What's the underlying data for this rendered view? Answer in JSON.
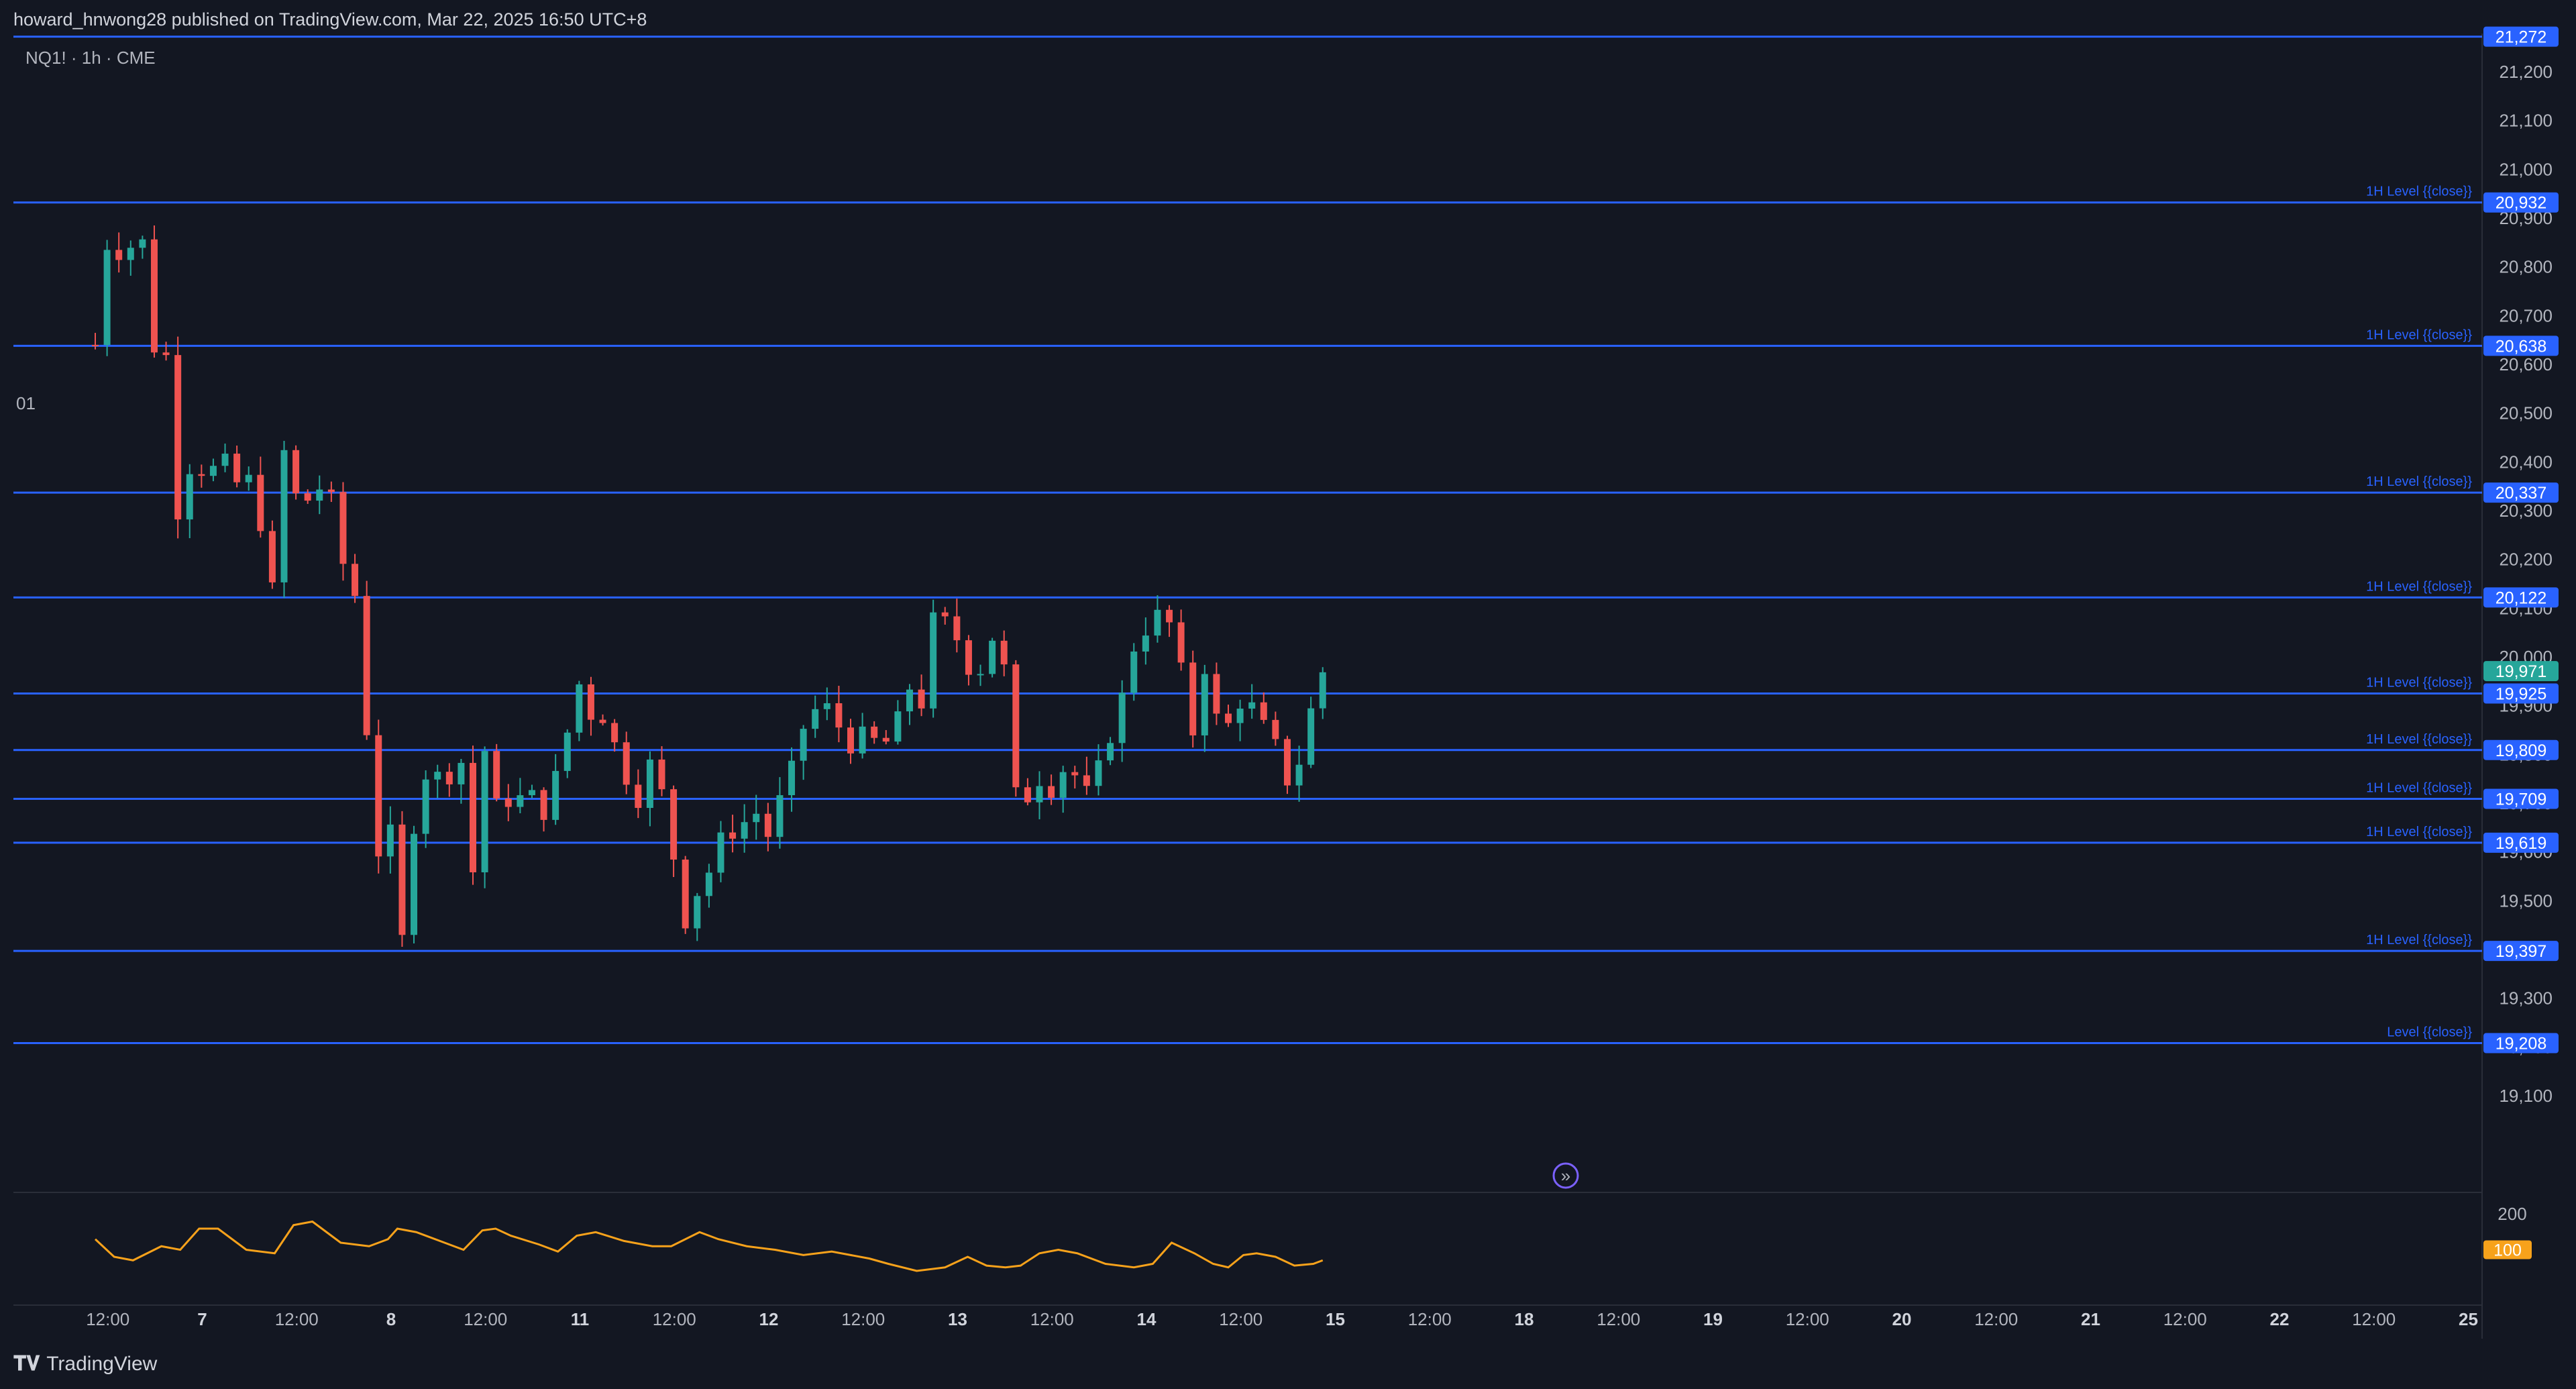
{
  "header": {
    "published": "howard_hnwong28 published on TradingView.com, Mar 22, 2025 16:50 UTC+8"
  },
  "footer": {
    "brand": "TradingView",
    "logo": "tv-logo-icon"
  },
  "colors": {
    "background": "#131722",
    "up": "#26a69a",
    "down": "#ef5350",
    "level": "#2962ff",
    "oscillator": "#f7a21b",
    "last_price": "#26a69a",
    "grid_text": "#b2b5be"
  },
  "chart_data": {
    "type": "candlestick",
    "symbol": "NQ1! · 1h · CME",
    "price_axis": {
      "min": 19000,
      "max": 21300,
      "ticks": [
        "21,200",
        "21,100",
        "21,000",
        "20,900",
        "20,800",
        "20,700",
        "20,600",
        "20,500",
        "20,400",
        "20,300",
        "20,200",
        "20,100",
        "20,000",
        "19,900",
        "19,800",
        "19,700",
        "19,600",
        "19,500",
        "19,400",
        "19,300",
        "19,200",
        "19,100"
      ],
      "tick_values": [
        21200,
        21100,
        21000,
        20900,
        20800,
        20700,
        20600,
        20500,
        20400,
        20300,
        20200,
        20100,
        20000,
        19900,
        19800,
        19700,
        19600,
        19500,
        19400,
        19300,
        19200,
        19100
      ]
    },
    "time_axis": {
      "labels": [
        "12:00",
        "7",
        "12:00",
        "8",
        "12:00",
        "11",
        "12:00",
        "12",
        "12:00",
        "13",
        "12:00",
        "14",
        "12:00",
        "15",
        "12:00",
        "18",
        "12:00",
        "19",
        "12:00",
        "20",
        "12:00",
        "21",
        "12:00",
        "22",
        "12:00",
        "25"
      ],
      "bold": [
        false,
        true,
        false,
        true,
        false,
        true,
        false,
        true,
        false,
        true,
        false,
        true,
        false,
        true,
        false,
        true,
        false,
        true,
        false,
        true,
        false,
        true,
        false,
        true,
        false,
        true
      ],
      "positions": [
        0.5,
        1,
        1.5,
        2,
        2.5,
        3,
        3.5,
        4,
        4.5,
        5,
        5.5,
        6,
        6.5,
        7,
        7.5,
        8,
        8.5,
        9,
        9.5,
        10,
        10.5,
        11,
        11.5,
        12,
        12.5,
        13
      ]
    },
    "levels": [
      {
        "value": 21272,
        "label": "21,272",
        "text": ""
      },
      {
        "value": 20932,
        "label": "20,932",
        "text": "1H Level {{close}}"
      },
      {
        "value": 20638,
        "label": "20,638",
        "text": "1H Level {{close}}"
      },
      {
        "value": 20337,
        "label": "20,337",
        "text": "1H Level {{close}}"
      },
      {
        "value": 20122,
        "label": "20,122",
        "text": "1H Level {{close}}"
      },
      {
        "value": 19925,
        "label": "19,925",
        "text": "1H Level {{close}}"
      },
      {
        "value": 19809,
        "label": "19,809",
        "text": "1H Level {{close}}"
      },
      {
        "value": 19709,
        "label": "19,709",
        "text": "1H Level {{close}}"
      },
      {
        "value": 19619,
        "label": "19,619",
        "text": "1H Level {{close}}"
      },
      {
        "value": 19397,
        "label": "19,397",
        "text": "1H Level {{close}}"
      },
      {
        "value": 19208,
        "label": "19,208",
        "text": "Level {{close}}"
      }
    ],
    "last_price": {
      "value": 19971,
      "label": "19,971"
    },
    "left_label": "01",
    "close_path": [
      [
        0,
        20640
      ],
      [
        0.04,
        20800
      ],
      [
        0.08,
        20880
      ],
      [
        0.12,
        20830
      ],
      [
        0.2,
        20845
      ],
      [
        0.25,
        20850
      ],
      [
        0.28,
        20700
      ],
      [
        0.33,
        20600
      ],
      [
        0.37,
        20650
      ],
      [
        0.4,
        20450
      ],
      [
        0.45,
        20250
      ],
      [
        0.5,
        20390
      ],
      [
        0.6,
        20380
      ],
      [
        0.7,
        20400
      ],
      [
        0.78,
        20330
      ],
      [
        0.85,
        20400
      ],
      [
        0.88,
        20250
      ],
      [
        0.93,
        20100
      ],
      [
        0.97,
        20300
      ],
      [
        1.0,
        20420
      ],
      [
        1.03,
        20440
      ],
      [
        1.08,
        20270
      ],
      [
        1.12,
        20320
      ],
      [
        1.18,
        20350
      ],
      [
        1.25,
        20320
      ],
      [
        1.3,
        20200
      ],
      [
        1.37,
        20150
      ],
      [
        1.42,
        19920
      ],
      [
        1.45,
        19800
      ],
      [
        1.5,
        19600
      ],
      [
        1.55,
        19700
      ],
      [
        1.58,
        19550
      ],
      [
        1.62,
        19400
      ],
      [
        1.66,
        19560
      ],
      [
        1.7,
        19700
      ],
      [
        1.75,
        19760
      ],
      [
        1.8,
        19780
      ],
      [
        1.84,
        19700
      ],
      [
        1.9,
        19800
      ],
      [
        1.95,
        19780
      ],
      [
        2.0,
        19560
      ],
      [
        2.05,
        19800
      ],
      [
        2.08,
        19820
      ],
      [
        2.12,
        19690
      ],
      [
        2.16,
        19720
      ],
      [
        2.2,
        19700
      ],
      [
        2.3,
        19720
      ],
      [
        2.38,
        19680
      ],
      [
        2.42,
        19750
      ],
      [
        2.48,
        19760
      ],
      [
        2.52,
        19930
      ],
      [
        2.58,
        19950
      ],
      [
        2.62,
        19880
      ],
      [
        2.67,
        19900
      ],
      [
        2.72,
        19840
      ],
      [
        2.78,
        19800
      ],
      [
        2.85,
        19700
      ],
      [
        2.9,
        19720
      ],
      [
        2.95,
        19800
      ],
      [
        3.0,
        19720
      ],
      [
        3.05,
        19620
      ],
      [
        3.1,
        19500
      ],
      [
        3.15,
        19420
      ],
      [
        3.2,
        19550
      ],
      [
        3.25,
        19560
      ],
      [
        3.3,
        19620
      ],
      [
        3.4,
        19650
      ],
      [
        3.5,
        19680
      ],
      [
        3.55,
        19620
      ],
      [
        3.62,
        19700
      ],
      [
        3.7,
        19780
      ],
      [
        3.78,
        19900
      ],
      [
        3.85,
        19880
      ],
      [
        3.9,
        19910
      ],
      [
        3.95,
        19840
      ],
      [
        4.0,
        19820
      ],
      [
        4.05,
        19840
      ],
      [
        4.1,
        19830
      ],
      [
        4.18,
        19820
      ],
      [
        4.25,
        19870
      ],
      [
        4.3,
        19940
      ],
      [
        4.35,
        19930
      ],
      [
        4.4,
        19880
      ],
      [
        4.45,
        20140
      ],
      [
        4.5,
        20070
      ],
      [
        4.55,
        20050
      ],
      [
        4.6,
        20000
      ],
      [
        4.65,
        19960
      ],
      [
        4.7,
        19980
      ],
      [
        4.75,
        20040
      ],
      [
        4.8,
        20000
      ],
      [
        4.85,
        19900
      ],
      [
        4.88,
        19680
      ],
      [
        4.95,
        19720
      ],
      [
        5.0,
        19750
      ],
      [
        5.05,
        19720
      ],
      [
        5.1,
        19760
      ],
      [
        5.15,
        19780
      ],
      [
        5.2,
        19750
      ],
      [
        5.25,
        19720
      ],
      [
        5.3,
        19760
      ],
      [
        5.35,
        19800
      ],
      [
        5.4,
        19880
      ],
      [
        5.45,
        19930
      ],
      [
        5.5,
        20020
      ],
      [
        5.55,
        20050
      ],
      [
        5.6,
        20080
      ],
      [
        5.65,
        20090
      ],
      [
        5.7,
        20060
      ],
      [
        5.75,
        19970
      ],
      [
        5.78,
        19870
      ],
      [
        5.82,
        19840
      ],
      [
        5.85,
        19920
      ],
      [
        5.9,
        20040
      ],
      [
        5.93,
        19880
      ],
      [
        5.98,
        19840
      ],
      [
        6.02,
        19880
      ],
      [
        6.08,
        19920
      ],
      [
        6.12,
        19900
      ],
      [
        6.18,
        19860
      ],
      [
        6.22,
        19840
      ],
      [
        6.27,
        19800
      ],
      [
        6.3,
        19780
      ],
      [
        6.33,
        19700
      ],
      [
        6.36,
        19740
      ],
      [
        6.4,
        19860
      ],
      [
        6.45,
        19900
      ],
      [
        6.5,
        19970
      ]
    ],
    "oscillator": {
      "levels": [
        "200",
        "100"
      ],
      "path": [
        [
          0,
          130
        ],
        [
          0.1,
          80
        ],
        [
          0.2,
          70
        ],
        [
          0.35,
          110
        ],
        [
          0.45,
          100
        ],
        [
          0.55,
          160
        ],
        [
          0.65,
          160
        ],
        [
          0.8,
          100
        ],
        [
          0.95,
          90
        ],
        [
          1.05,
          170
        ],
        [
          1.15,
          180
        ],
        [
          1.3,
          120
        ],
        [
          1.45,
          110
        ],
        [
          1.55,
          130
        ],
        [
          1.6,
          160
        ],
        [
          1.7,
          150
        ],
        [
          1.85,
          120
        ],
        [
          1.95,
          100
        ],
        [
          2.05,
          155
        ],
        [
          2.12,
          160
        ],
        [
          2.2,
          140
        ],
        [
          2.35,
          115
        ],
        [
          2.45,
          95
        ],
        [
          2.55,
          140
        ],
        [
          2.65,
          150
        ],
        [
          2.8,
          125
        ],
        [
          2.95,
          110
        ],
        [
          3.05,
          110
        ],
        [
          3.2,
          150
        ],
        [
          3.3,
          130
        ],
        [
          3.45,
          110
        ],
        [
          3.6,
          100
        ],
        [
          3.75,
          85
        ],
        [
          3.9,
          95
        ],
        [
          4.1,
          75
        ],
        [
          4.2,
          60
        ],
        [
          4.35,
          40
        ],
        [
          4.5,
          50
        ],
        [
          4.62,
          80
        ],
        [
          4.72,
          55
        ],
        [
          4.82,
          50
        ],
        [
          4.9,
          55
        ],
        [
          5.0,
          90
        ],
        [
          5.1,
          100
        ],
        [
          5.2,
          90
        ],
        [
          5.35,
          60
        ],
        [
          5.5,
          50
        ],
        [
          5.6,
          60
        ],
        [
          5.7,
          120
        ],
        [
          5.82,
          90
        ],
        [
          5.92,
          60
        ],
        [
          6.0,
          50
        ],
        [
          6.08,
          85
        ],
        [
          6.15,
          90
        ],
        [
          6.25,
          80
        ],
        [
          6.35,
          55
        ],
        [
          6.45,
          60
        ],
        [
          6.5,
          70
        ]
      ]
    }
  }
}
